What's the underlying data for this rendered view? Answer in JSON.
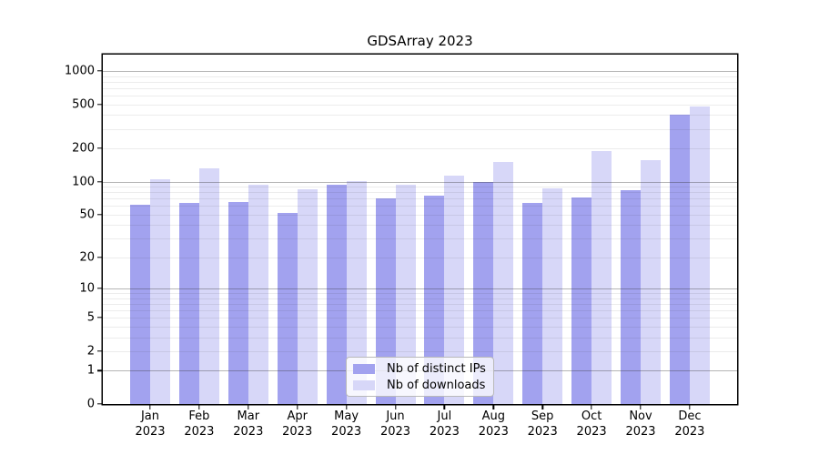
{
  "chart_data": {
    "type": "bar",
    "title": "GDSArray 2023",
    "categories": [
      "Jan",
      "Feb",
      "Mar",
      "Apr",
      "May",
      "Jun",
      "Jul",
      "Aug",
      "Sep",
      "Oct",
      "Nov",
      "Dec"
    ],
    "year_label": "2023",
    "series": [
      {
        "name": "Nb of distinct IPs",
        "color": "#a2a2ef",
        "values": [
          62,
          64,
          65,
          52,
          94,
          70,
          75,
          100,
          64,
          71,
          84,
          400
        ]
      },
      {
        "name": "Nb of downloads",
        "color": "#d7d7f8",
        "values": [
          105,
          131,
          93,
          85,
          101,
          93,
          114,
          152,
          87,
          189,
          157,
          475
        ]
      }
    ],
    "y_axis": {
      "scale": "log10(value+1)",
      "labeled_ticks": [
        1000,
        500,
        200,
        100,
        50,
        20,
        10,
        5,
        2,
        1,
        0
      ],
      "major_gridlines": [
        1,
        10,
        100,
        1000
      ],
      "minor_gridlines": [
        2,
        3,
        4,
        5,
        6,
        7,
        8,
        9,
        20,
        30,
        40,
        50,
        60,
        70,
        80,
        90,
        200,
        300,
        400,
        500,
        600,
        700,
        800,
        900
      ],
      "range_top_value": 1000
    },
    "x_axis": {
      "tick_label_second_line": "2023"
    },
    "legend": {
      "position": "bottom-center"
    },
    "grid": true,
    "colors": {
      "axis": "#000000",
      "major_grid": "#b5b5b5",
      "minor_grid": "#ebebeb"
    }
  }
}
